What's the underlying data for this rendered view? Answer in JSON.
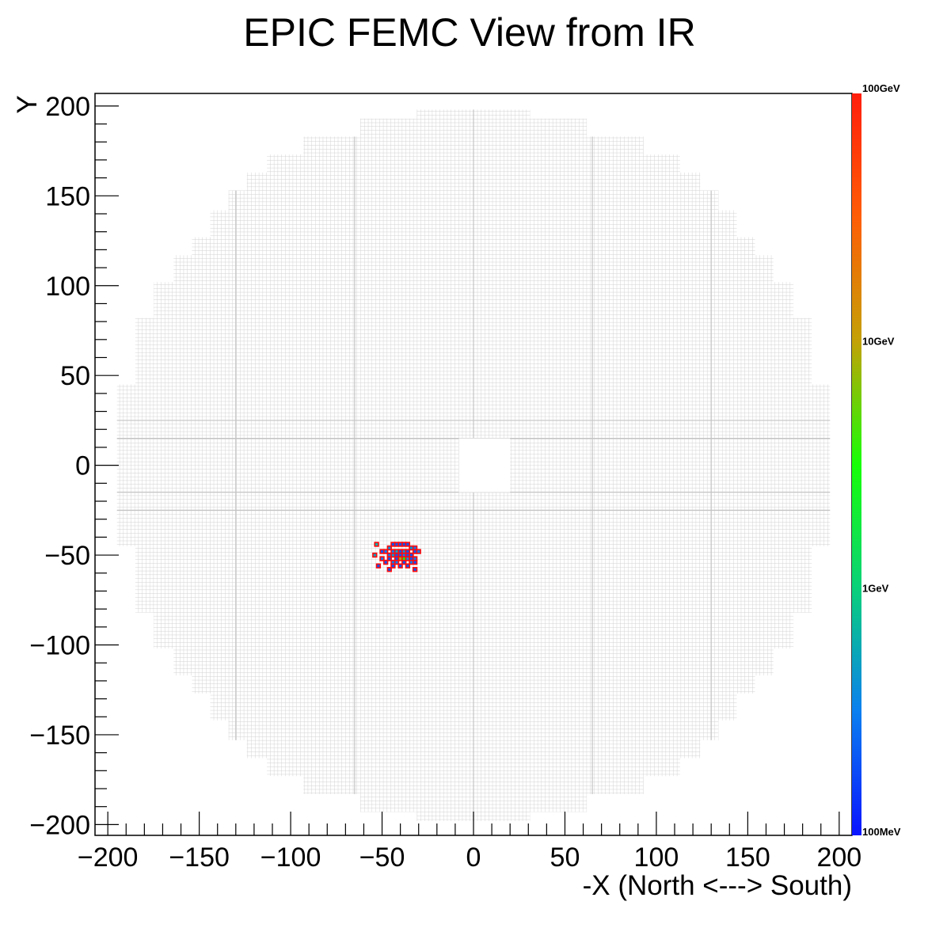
{
  "chart_data": {
    "type": "heatmap",
    "title": "EPIC FEMC View from IR",
    "xlabel": "-X (North <---> South)",
    "ylabel": "Y",
    "xlim": [
      -207,
      207
    ],
    "ylim": [
      -206,
      207
    ],
    "x_ticks": [
      -200,
      -150,
      -100,
      -50,
      0,
      50,
      100,
      150,
      200
    ],
    "x_tick_labels": [
      "−200",
      "−150",
      "−100",
      "−50",
      "0",
      "50",
      "100",
      "150",
      "200"
    ],
    "y_ticks": [
      200,
      150,
      100,
      50,
      0,
      -50,
      -100,
      -150,
      -200
    ],
    "y_tick_labels": [
      "200",
      "150",
      "100",
      "50",
      "0",
      "−50",
      "−100",
      "−150",
      "−200"
    ],
    "detector_outline": {
      "right_edge_by_band": [
        {
          "y": [
            193,
            198
          ],
          "x_max": 31
        },
        {
          "y": [
            183,
            193
          ],
          "x_max": 62
        },
        {
          "y": [
            173,
            183
          ],
          "x_max": 93
        },
        {
          "y": [
            163,
            173
          ],
          "x_max": 113
        },
        {
          "y": [
            153,
            163
          ],
          "x_max": 124
        },
        {
          "y": [
            142,
            153
          ],
          "x_max": 134
        },
        {
          "y": [
            127,
            142
          ],
          "x_max": 144
        },
        {
          "y": [
            117,
            127
          ],
          "x_max": 154
        },
        {
          "y": [
            102,
            117
          ],
          "x_max": 164
        },
        {
          "y": [
            82,
            102
          ],
          "x_max": 175
        },
        {
          "y": [
            45,
            82
          ],
          "x_max": 185
        },
        {
          "y": [
            -45,
            45
          ],
          "x_max": 195
        }
      ],
      "beam_hole": {
        "x": [
          -8,
          20
        ],
        "y": [
          -15,
          15
        ]
      }
    },
    "hits": [
      {
        "x": -53,
        "y": -44,
        "e": 0.6
      },
      {
        "x": -46,
        "y": -46,
        "e": 0.4
      },
      {
        "x": -44,
        "y": -44,
        "e": 0.2
      },
      {
        "x": -42,
        "y": -44,
        "e": 0.2
      },
      {
        "x": -40,
        "y": -44,
        "e": 0.2
      },
      {
        "x": -38,
        "y": -44,
        "e": 0.2
      },
      {
        "x": -36,
        "y": -44,
        "e": 0.2
      },
      {
        "x": -34,
        "y": -46,
        "e": 0.4
      },
      {
        "x": -32,
        "y": -46,
        "e": 0.3
      },
      {
        "x": -50,
        "y": -48,
        "e": 0.2
      },
      {
        "x": -48,
        "y": -48,
        "e": 0.3
      },
      {
        "x": -44,
        "y": -48,
        "e": 0.3
      },
      {
        "x": -42,
        "y": -48,
        "e": 0.5
      },
      {
        "x": -40,
        "y": -48,
        "e": 0.2
      },
      {
        "x": -38,
        "y": -48,
        "e": 0.4
      },
      {
        "x": -36,
        "y": -48,
        "e": 0.2
      },
      {
        "x": -32,
        "y": -48,
        "e": 0.2
      },
      {
        "x": -30,
        "y": -48,
        "e": 0.3
      },
      {
        "x": -54,
        "y": -50,
        "e": 0.5
      },
      {
        "x": -46,
        "y": -50,
        "e": 0.3
      },
      {
        "x": -44,
        "y": -50,
        "e": 0.4
      },
      {
        "x": -42,
        "y": -50,
        "e": 0.2
      },
      {
        "x": -40,
        "y": -50,
        "e": 0.2
      },
      {
        "x": -38,
        "y": -50,
        "e": 0.3
      },
      {
        "x": -36,
        "y": -50,
        "e": 0.2
      },
      {
        "x": -34,
        "y": -50,
        "e": 0.2
      },
      {
        "x": -50,
        "y": -52,
        "e": 0.3
      },
      {
        "x": -46,
        "y": -52,
        "e": 0.2
      },
      {
        "x": -42,
        "y": -52,
        "e": 0.2
      },
      {
        "x": -40,
        "y": -52,
        "e": 8.0
      },
      {
        "x": -38,
        "y": -52,
        "e": 3.0
      },
      {
        "x": -36,
        "y": -52,
        "e": 0.4
      },
      {
        "x": -34,
        "y": -52,
        "e": 0.2
      },
      {
        "x": -32,
        "y": -52,
        "e": 0.3
      },
      {
        "x": -48,
        "y": -54,
        "e": 0.2
      },
      {
        "x": -44,
        "y": -54,
        "e": 0.3
      },
      {
        "x": -42,
        "y": -54,
        "e": 0.3
      },
      {
        "x": -38,
        "y": -54,
        "e": 0.2
      },
      {
        "x": -34,
        "y": -54,
        "e": 0.3
      },
      {
        "x": -32,
        "y": -54,
        "e": 0.2
      },
      {
        "x": -52,
        "y": -56,
        "e": 0.2
      },
      {
        "x": -44,
        "y": -56,
        "e": 0.2
      },
      {
        "x": -40,
        "y": -56,
        "e": 0.2
      },
      {
        "x": -36,
        "y": -56,
        "e": 0.2
      },
      {
        "x": -46,
        "y": -58,
        "e": 0.2
      },
      {
        "x": -32,
        "y": -58,
        "e": 0.2
      }
    ],
    "colorbar": {
      "scale": "log",
      "range_gev": [
        0.1,
        100
      ],
      "tick_values_gev": [
        100,
        10,
        1,
        0.1
      ],
      "tick_labels": [
        "100GeV",
        "10GeV",
        "1GeV",
        "100MeV"
      ],
      "colors": [
        "#0a14ff",
        "#0b7ff0",
        "#0ad17a",
        "#17ff07",
        "#c4a106",
        "#ff5d06",
        "#ff1e0c"
      ]
    },
    "grid": true
  },
  "colors": {
    "cell_outline": "#d0d0d0",
    "hit_border": "#ff0a0a"
  }
}
